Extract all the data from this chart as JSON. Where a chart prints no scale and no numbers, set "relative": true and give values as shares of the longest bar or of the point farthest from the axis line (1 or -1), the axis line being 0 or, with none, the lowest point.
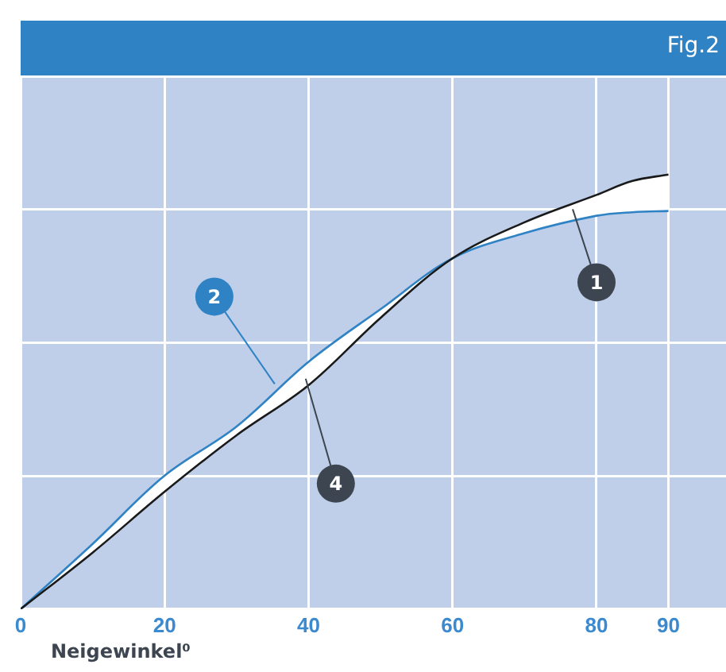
{
  "chart_data": {
    "type": "line",
    "title": "Fig.2",
    "xlabel": "Neigewinkel⁰",
    "relative": true,
    "xlim": [
      0,
      98
    ],
    "xticks": [
      0,
      20,
      40,
      60,
      80,
      90
    ],
    "grid": true,
    "tick_labels": "x",
    "legend": false,
    "marker": "none",
    "line_style": "solid",
    "series": [
      {
        "color": "#1a1a1a",
        "x": [
          0,
          10,
          20,
          30,
          40,
          50,
          60,
          70,
          80,
          85,
          90
        ],
        "values": [
          0,
          0.13,
          0.27,
          0.4,
          0.515,
          0.67,
          0.807,
          0.89,
          0.953,
          0.985,
          1
        ]
      },
      {
        "color": "#2f83c5",
        "x": [
          0,
          10,
          20,
          30,
          40,
          50,
          60,
          70,
          80,
          85,
          90
        ],
        "values": [
          0,
          0.15,
          0.307,
          0.42,
          0.569,
          0.69,
          0.807,
          0.865,
          0.905,
          0.913,
          0.916
        ]
      }
    ],
    "annotations": [
      {
        "text": "1",
        "x": 76.7,
        "y": 0.92
      },
      {
        "text": "2",
        "x": 35.3,
        "y": 0.518
      },
      {
        "text": "4",
        "x": 39.6,
        "y": 0.53
      }
    ]
  }
}
